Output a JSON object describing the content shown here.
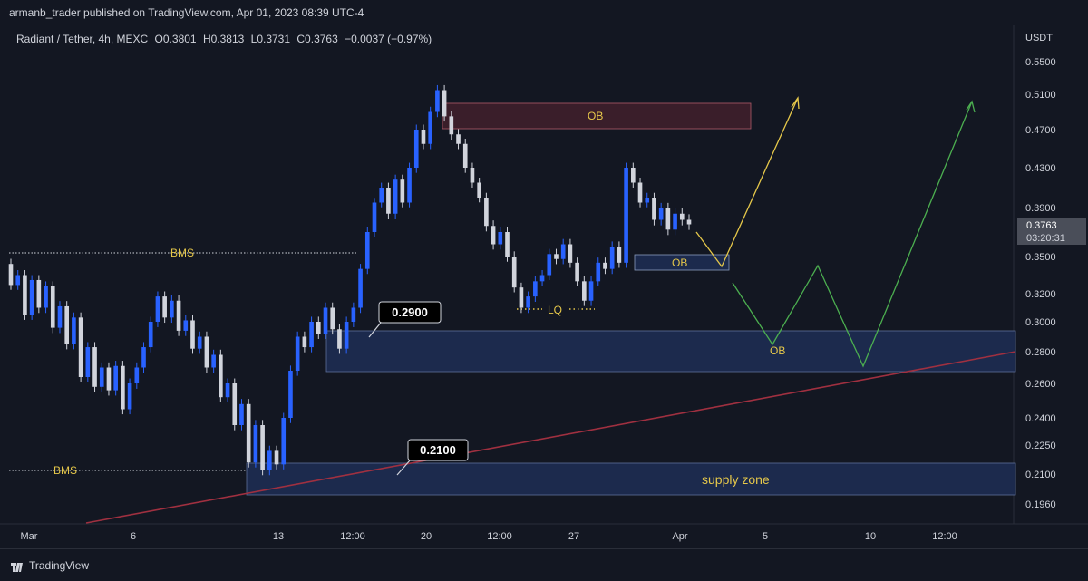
{
  "header": {
    "publisher_line": "armanb_trader published on TradingView.com, Apr 01, 2023 08:39 UTC-4"
  },
  "chart_data": {
    "type": "candlestick",
    "symbol_line": "Radiant / Tether, 4h, MEXC",
    "ohlc": {
      "open": "O0.3801",
      "high": "H0.3813",
      "low": "L0.3731",
      "close": "C0.3763",
      "change": "−0.0037 (−0.97%)"
    },
    "currency": "USDT",
    "y_ticks": [
      "0.5500",
      "0.5100",
      "0.4700",
      "0.4300",
      "0.3900",
      "0.3500",
      "0.3200",
      "0.3000",
      "0.2800",
      "0.2600",
      "0.2400",
      "0.2250",
      "0.2100",
      "0.1960"
    ],
    "x_ticks": [
      "Mar",
      "6",
      "13",
      "12:00",
      "20",
      "12:00",
      "27",
      "Apr",
      "5",
      "10",
      "12:00"
    ],
    "last_price": {
      "value": "0.3763",
      "countdown": "03:20:31"
    },
    "annotations": {
      "bms_upper": "BMS",
      "bms_lower": "BMS",
      "ob_top": "OB",
      "ob_mid": "OB",
      "ob_zone": "OB",
      "lq": "LQ",
      "supply_zone": "supply zone",
      "callout_upper": "0.2900",
      "callout_lower": "0.2100"
    },
    "colors": {
      "background": "#131722",
      "up_candle": "#2962ff",
      "down_candle": "#d1d4dc",
      "zone_fill": "#1c2a4d",
      "ob_fill": "#3a1e2a",
      "trendline": "#a03040",
      "projection_up": "#e6c84a",
      "projection_alt": "#4caf50",
      "label_text": "#e6c84a"
    },
    "series": [
      {
        "candles": [
          [
            0.344,
            0.327
          ],
          [
            0.327,
            0.335
          ],
          [
            0.335,
            0.305
          ],
          [
            0.305,
            0.331
          ],
          [
            0.331,
            0.31
          ],
          [
            0.31,
            0.326
          ],
          [
            0.326,
            0.296
          ],
          [
            0.296,
            0.311
          ],
          [
            0.311,
            0.285
          ],
          [
            0.285,
            0.303
          ],
          [
            0.303,
            0.264
          ],
          [
            0.264,
            0.283
          ],
          [
            0.283,
            0.258
          ],
          [
            0.258,
            0.27
          ],
          [
            0.27,
            0.256
          ],
          [
            0.256,
            0.271
          ],
          [
            0.271,
            0.245
          ],
          [
            0.245,
            0.26
          ],
          [
            0.26,
            0.27
          ],
          [
            0.27,
            0.283
          ],
          [
            0.283,
            0.3
          ],
          [
            0.3,
            0.318
          ],
          [
            0.318,
            0.303
          ],
          [
            0.303,
            0.315
          ],
          [
            0.315,
            0.294
          ],
          [
            0.294,
            0.301
          ],
          [
            0.301,
            0.282
          ],
          [
            0.282,
            0.29
          ],
          [
            0.29,
            0.27
          ],
          [
            0.27,
            0.278
          ],
          [
            0.278,
            0.252
          ],
          [
            0.252,
            0.26
          ],
          [
            0.26,
            0.236
          ],
          [
            0.236,
            0.248
          ],
          [
            0.248,
            0.216
          ],
          [
            0.216,
            0.236
          ],
          [
            0.236,
            0.212
          ],
          [
            0.212,
            0.222
          ],
          [
            0.222,
            0.215
          ],
          [
            0.215,
            0.24
          ],
          [
            0.24,
            0.268
          ],
          [
            0.268,
            0.29
          ],
          [
            0.29,
            0.283
          ],
          [
            0.283,
            0.3
          ],
          [
            0.3,
            0.292
          ],
          [
            0.292,
            0.31
          ],
          [
            0.31,
            0.295
          ],
          [
            0.295,
            0.282
          ],
          [
            0.282,
            0.3
          ],
          [
            0.3,
            0.31
          ],
          [
            0.31,
            0.34
          ],
          [
            0.34,
            0.37
          ],
          [
            0.37,
            0.395
          ],
          [
            0.395,
            0.41
          ],
          [
            0.41,
            0.385
          ],
          [
            0.385,
            0.418
          ],
          [
            0.418,
            0.395
          ],
          [
            0.395,
            0.43
          ],
          [
            0.43,
            0.47
          ],
          [
            0.47,
            0.455
          ],
          [
            0.455,
            0.49
          ],
          [
            0.49,
            0.515
          ],
          [
            0.515,
            0.485
          ],
          [
            0.485,
            0.465
          ],
          [
            0.465,
            0.455
          ],
          [
            0.455,
            0.43
          ],
          [
            0.43,
            0.415
          ],
          [
            0.415,
            0.4
          ],
          [
            0.4,
            0.375
          ],
          [
            0.375,
            0.36
          ],
          [
            0.36,
            0.37
          ],
          [
            0.37,
            0.35
          ],
          [
            0.35,
            0.325
          ],
          [
            0.325,
            0.31
          ],
          [
            0.31,
            0.318
          ],
          [
            0.318,
            0.33
          ],
          [
            0.33,
            0.335
          ],
          [
            0.335,
            0.352
          ],
          [
            0.352,
            0.348
          ],
          [
            0.348,
            0.36
          ],
          [
            0.36,
            0.345
          ],
          [
            0.345,
            0.33
          ],
          [
            0.33,
            0.315
          ],
          [
            0.315,
            0.33
          ],
          [
            0.33,
            0.345
          ],
          [
            0.345,
            0.34
          ],
          [
            0.34,
            0.358
          ],
          [
            0.358,
            0.345
          ],
          [
            0.345,
            0.43
          ],
          [
            0.43,
            0.415
          ],
          [
            0.415,
            0.395
          ],
          [
            0.395,
            0.4
          ],
          [
            0.4,
            0.38
          ],
          [
            0.38,
            0.39
          ],
          [
            0.39,
            0.372
          ],
          [
            0.372,
            0.385
          ],
          [
            0.385,
            0.38
          ],
          [
            0.38,
            0.3763
          ]
        ]
      }
    ]
  }
}
